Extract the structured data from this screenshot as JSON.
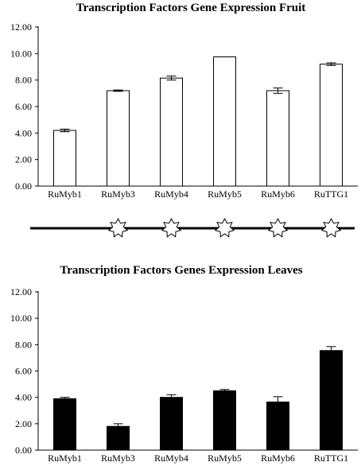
{
  "chart_data": [
    {
      "type": "bar",
      "title": "Transcription Factors Gene Expression Fruit",
      "categories": [
        "RuMyb1",
        "RuMyb3",
        "RuMyb4",
        "RuMyb5",
        "RuMyb6",
        "RuTTG1"
      ],
      "values": [
        4.2,
        7.2,
        8.15,
        9.75,
        7.2,
        9.2
      ],
      "errors": [
        0.1,
        0.05,
        0.15,
        0.0,
        0.2,
        0.1
      ],
      "ylim": [
        0,
        12
      ],
      "yticks": [
        "0.00",
        "2.00",
        "4.00",
        "6.00",
        "8.00",
        "10.00",
        "12.00"
      ],
      "bar_color": "#ffffff",
      "bar_edge": "#000000",
      "grid": false
    },
    {
      "type": "bar",
      "title": "Transcription Factors Genes Expression Leaves",
      "categories": [
        "RuMyb1",
        "RuMyb3",
        "RuMyb4",
        "RuMyb5",
        "RuMyb6",
        "RuTTG1"
      ],
      "values": [
        3.9,
        1.8,
        4.0,
        4.5,
        3.65,
        7.55
      ],
      "errors": [
        0.1,
        0.2,
        0.2,
        0.1,
        0.4,
        0.3
      ],
      "ylim": [
        0,
        12
      ],
      "yticks": [
        "0.00",
        "2.00",
        "4.00",
        "6.00",
        "8.00",
        "10.00",
        "12.00"
      ],
      "bar_color": "#000000",
      "bar_edge": "#000000",
      "grid": false
    }
  ],
  "significance": {
    "marker": "star-burst",
    "categories": [
      "RuMyb3",
      "RuMyb4",
      "RuMyb5",
      "RuMyb6",
      "RuTTG1"
    ]
  }
}
